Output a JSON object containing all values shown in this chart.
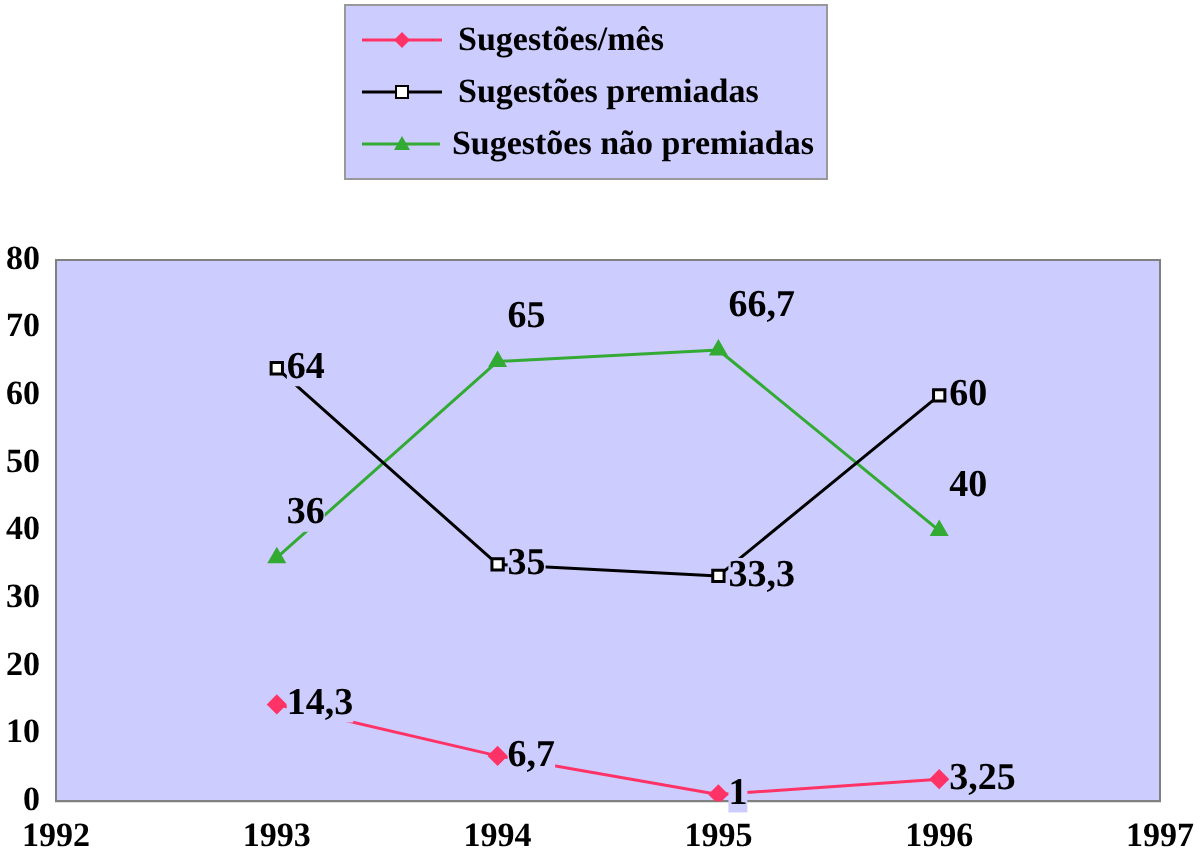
{
  "chart_data": {
    "type": "line",
    "x": [
      1993,
      1994,
      1995,
      1996
    ],
    "xlim": [
      1992,
      1997
    ],
    "xticks": [
      1992,
      1993,
      1994,
      1995,
      1996,
      1997
    ],
    "ylim": [
      0,
      80
    ],
    "yticks": [
      0,
      10,
      20,
      30,
      40,
      50,
      60,
      70,
      80
    ],
    "grid": false,
    "legend": "top",
    "series": [
      {
        "name": "Sugestões/mês",
        "color": "#ff3366",
        "marker": "diamond",
        "values": [
          14.3,
          6.7,
          1,
          3.25
        ],
        "value_labels": [
          "14,3",
          "6,7",
          "1",
          "3,25"
        ]
      },
      {
        "name": "Sugestões premiadas",
        "color": "#000000",
        "marker": "square",
        "values": [
          64,
          35,
          33.3,
          60
        ],
        "value_labels": [
          "64",
          "35",
          "33,3",
          "60"
        ]
      },
      {
        "name": "Sugestões não premiadas",
        "color": "#33aa33",
        "marker": "triangle",
        "values": [
          36,
          65,
          66.7,
          40
        ],
        "value_labels": [
          "36",
          "65",
          "66,7",
          "40"
        ]
      }
    ]
  }
}
